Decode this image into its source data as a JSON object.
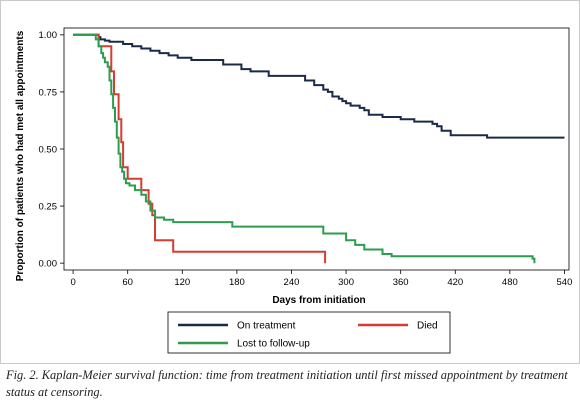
{
  "chart_data": {
    "type": "line",
    "step": true,
    "xlabel": "Days from initiation",
    "ylabel": "Proportion of patients who had met all appointments",
    "xlim": [
      -10,
      545
    ],
    "ylim": [
      -0.03,
      1.03
    ],
    "xticks": [
      "0",
      "60",
      "120",
      "180",
      "240",
      "300",
      "360",
      "420",
      "480",
      "540"
    ],
    "yticks": [
      "0.00",
      "0.25",
      "0.50",
      "0.75",
      "1.00"
    ],
    "grid": false,
    "legend_position": "bottom",
    "series": [
      {
        "name": "On treatment",
        "color": "#1b2a4a",
        "x": [
          0,
          28,
          30,
          35,
          40,
          55,
          65,
          75,
          85,
          95,
          105,
          115,
          130,
          165,
          185,
          195,
          215,
          255,
          265,
          275,
          280,
          285,
          292,
          296,
          300,
          305,
          315,
          320,
          325,
          340,
          360,
          375,
          395,
          400,
          405,
          415,
          455,
          462,
          540
        ],
        "y": [
          1.0,
          0.99,
          0.98,
          0.975,
          0.97,
          0.96,
          0.95,
          0.94,
          0.93,
          0.92,
          0.91,
          0.9,
          0.89,
          0.87,
          0.85,
          0.84,
          0.82,
          0.8,
          0.78,
          0.76,
          0.75,
          0.73,
          0.72,
          0.71,
          0.7,
          0.69,
          0.68,
          0.67,
          0.65,
          0.64,
          0.63,
          0.62,
          0.61,
          0.6,
          0.58,
          0.56,
          0.55,
          0.55,
          0.55
        ]
      },
      {
        "name": "Died",
        "color": "#d53c32",
        "x": [
          0,
          28,
          32,
          37,
          42,
          45,
          47,
          50,
          53,
          55,
          60,
          68,
          75,
          80,
          83,
          87,
          90,
          95,
          100,
          110,
          275,
          277
        ],
        "y": [
          1.0,
          0.95,
          0.95,
          0.95,
          0.84,
          0.74,
          0.74,
          0.63,
          0.53,
          0.42,
          0.37,
          0.37,
          0.32,
          0.32,
          0.26,
          0.21,
          0.1,
          0.1,
          0.1,
          0.05,
          0.05,
          0.0
        ]
      },
      {
        "name": "Lost to follow-up",
        "color": "#2e9c4e",
        "x": [
          0,
          25,
          28,
          31,
          33,
          35,
          38,
          40,
          42,
          44,
          46,
          48,
          50,
          52,
          54,
          56,
          58,
          62,
          68,
          75,
          80,
          85,
          90,
          100,
          110,
          175,
          275,
          300,
          310,
          320,
          340,
          350,
          505,
          507
        ],
        "y": [
          1.0,
          0.98,
          0.95,
          0.92,
          0.9,
          0.88,
          0.86,
          0.8,
          0.74,
          0.68,
          0.62,
          0.55,
          0.48,
          0.42,
          0.4,
          0.37,
          0.35,
          0.34,
          0.32,
          0.3,
          0.27,
          0.23,
          0.2,
          0.19,
          0.18,
          0.16,
          0.13,
          0.1,
          0.08,
          0.06,
          0.04,
          0.03,
          0.02,
          0.0
        ]
      }
    ]
  },
  "caption": {
    "text": "Fig. 2. Kaplan-Meier survival function: time from treatment initiation until first missed appointment by treatment status at censoring."
  }
}
